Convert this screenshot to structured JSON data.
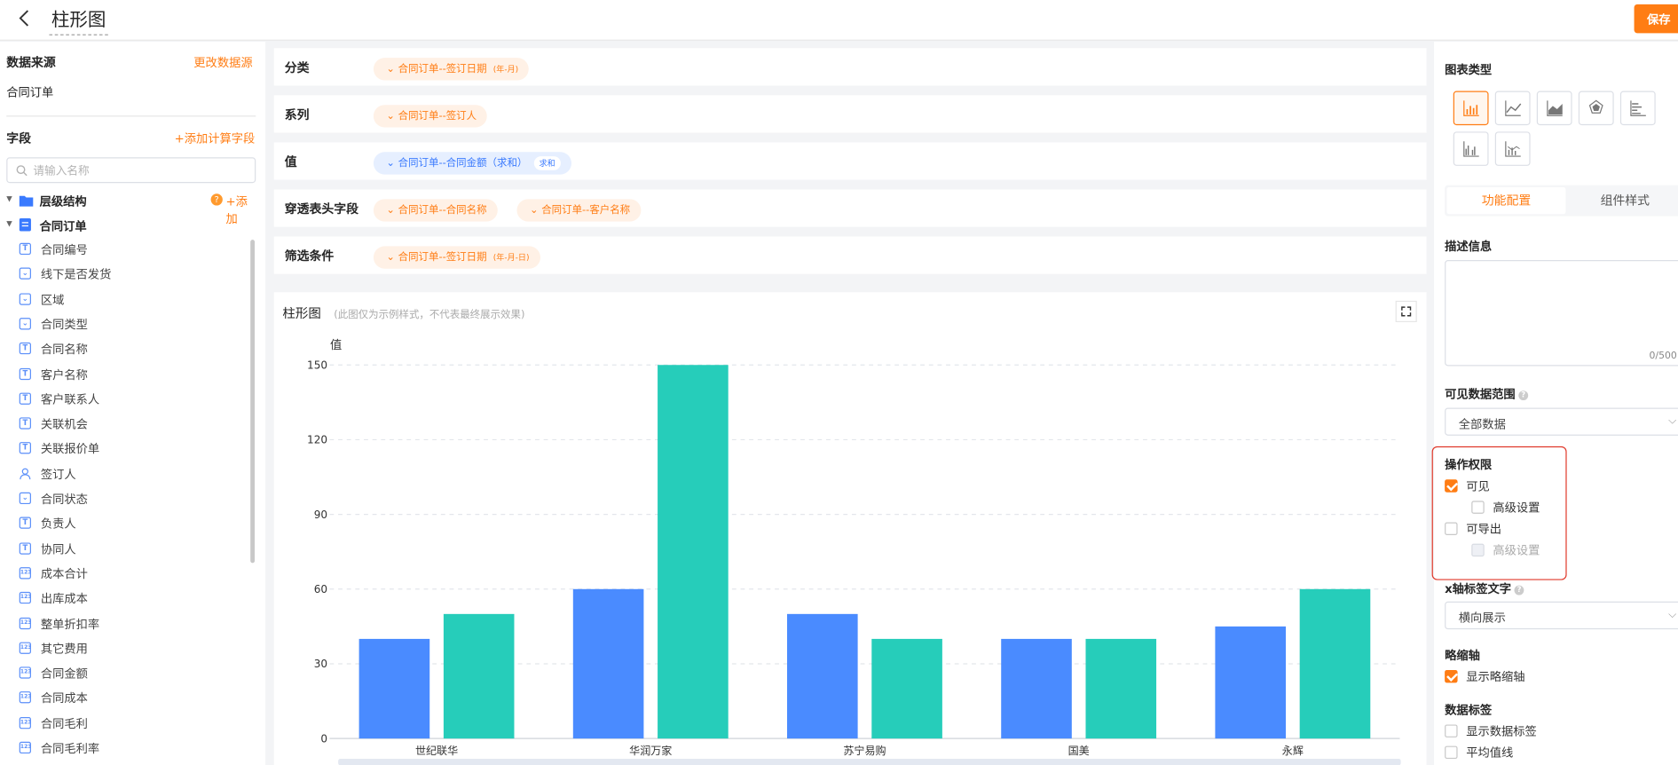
{
  "header": {
    "title": "柱形图",
    "save_label": "保存"
  },
  "left": {
    "datasource_title": "数据来源",
    "change_source": "更改数据源",
    "datasource": "合同订单",
    "fields_title": "字段",
    "add_calc_field": "+添加计算字段",
    "search_placeholder": "请输入名称",
    "tree": {
      "hierarchy": "层级结构",
      "add": "+添加",
      "table": "合同订单"
    },
    "fields": [
      {
        "label": "合同编号",
        "icon": "text-icon"
      },
      {
        "label": "线下是否发货",
        "icon": "select-icon"
      },
      {
        "label": "区域",
        "icon": "select-icon"
      },
      {
        "label": "合同类型",
        "icon": "select-icon"
      },
      {
        "label": "合同名称",
        "icon": "text-icon"
      },
      {
        "label": "客户名称",
        "icon": "text-icon"
      },
      {
        "label": "客户联系人",
        "icon": "text-icon"
      },
      {
        "label": "关联机会",
        "icon": "text-icon"
      },
      {
        "label": "关联报价单",
        "icon": "text-icon"
      },
      {
        "label": "签订人",
        "icon": "user-icon"
      },
      {
        "label": "合同状态",
        "icon": "select-icon"
      },
      {
        "label": "负责人",
        "icon": "text-icon"
      },
      {
        "label": "协同人",
        "icon": "text-icon"
      },
      {
        "label": "成本合计",
        "icon": "number-icon"
      },
      {
        "label": "出库成本",
        "icon": "number-icon"
      },
      {
        "label": "整单折扣率",
        "icon": "number-icon"
      },
      {
        "label": "其它费用",
        "icon": "number-icon"
      },
      {
        "label": "合同金额",
        "icon": "number-icon"
      },
      {
        "label": "合同成本",
        "icon": "number-icon"
      },
      {
        "label": "合同毛利",
        "icon": "number-icon"
      },
      {
        "label": "合同毛利率",
        "icon": "number-icon"
      }
    ]
  },
  "config": {
    "category": {
      "label": "分类",
      "pill": "合同订单--签订日期",
      "tag": "(年-月)"
    },
    "series": {
      "label": "系列",
      "pill": "合同订单--签订人"
    },
    "value": {
      "label": "值",
      "pill": "合同订单--合同金额（求和）",
      "tag": "求和"
    },
    "drill": {
      "label": "穿透表头字段",
      "pill1": "合同订单--合同名称",
      "pill2": "合同订单--客户名称"
    },
    "filter": {
      "label": "筛选条件",
      "pill": "合同订单--签订日期",
      "tag": "(年-月-日)"
    }
  },
  "chart_card": {
    "title": "柱形图",
    "subtitle": "(此图仅为示例样式，不代表最终展示效果)"
  },
  "chart_data": {
    "type": "bar",
    "ylabel": "值",
    "ylim": [
      0,
      150
    ],
    "yticks": [
      0,
      30,
      60,
      90,
      120,
      150
    ],
    "categories": [
      "世纪联华",
      "华润万家",
      "苏宁易购",
      "国美",
      "永辉"
    ],
    "series": [
      {
        "values": [
          40,
          60,
          50,
          40,
          45
        ],
        "color": "#4a8bff"
      },
      {
        "values": [
          50,
          150,
          40,
          40,
          60
        ],
        "color": "#26cdba"
      }
    ],
    "grid": true
  },
  "right": {
    "chart_type_title": "图表类型",
    "tabs": [
      "功能配置",
      "组件样式"
    ],
    "desc_title": "描述信息",
    "counter": "0/500",
    "range_title": "可见数据范围",
    "range_value": "全部数据",
    "perm_title": "操作权限",
    "visible": "可见",
    "advanced": "高级设置",
    "exportable": "可导出",
    "advanced2": "高级设置",
    "xaxis_title": "x轴标签文字",
    "xaxis_value": "横向展示",
    "thumb_title": "略缩轴",
    "thumb_label": "显示略缩轴",
    "datalabel_title": "数据标签",
    "show_datalabel": "显示数据标签",
    "avg_line": "平均值线"
  },
  "colors": {
    "accent": "#ff7d14",
    "blue": "#4a8bff",
    "teal": "#26cdba",
    "highlight": "#e0392b"
  }
}
